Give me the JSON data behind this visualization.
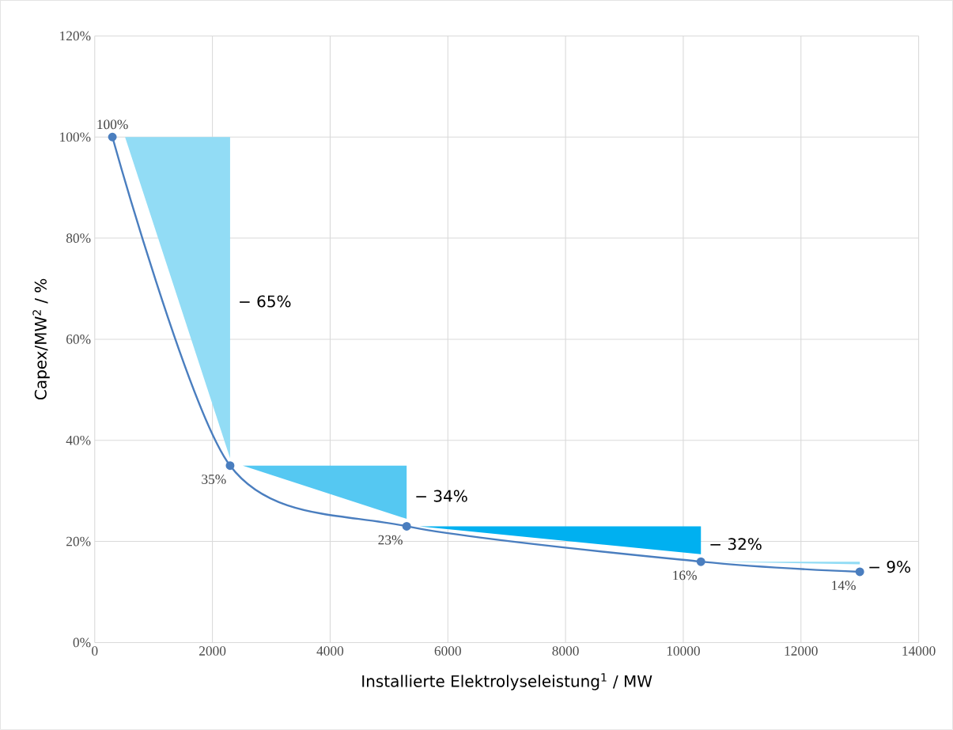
{
  "chart_data": {
    "type": "line",
    "xlabel": "Installierte Elektrolyseleistung$^{1}$ / MW",
    "ylabel": "Capex/MW$^{2}$ / %",
    "xlim": [
      0,
      14000
    ],
    "xticks": [
      0,
      2000,
      4000,
      6000,
      8000,
      10000,
      12000,
      14000
    ],
    "ylim": [
      0,
      120
    ],
    "yticks": [
      {
        "value": 0,
        "label": "0%"
      },
      {
        "value": 20,
        "label": "20%"
      },
      {
        "value": 40,
        "label": "40%"
      },
      {
        "value": 60,
        "label": "60%"
      },
      {
        "value": 80,
        "label": "80%"
      },
      {
        "value": 100,
        "label": "100%"
      },
      {
        "value": 120,
        "label": "120%"
      }
    ],
    "grid": true,
    "marker": "circle",
    "line_style": "solid",
    "series": [
      {
        "color": "#4a7ebf",
        "x": [
          300,
          2300,
          5300,
          10300,
          13000
        ],
        "values": [
          100,
          35,
          23,
          16,
          14
        ],
        "value_labels": [
          "100%",
          "35%",
          "23%",
          "16%",
          "14%"
        ]
      }
    ],
    "annotations": [
      "− 65%",
      "− 34%",
      "− 32%",
      "− 9%"
    ]
  }
}
